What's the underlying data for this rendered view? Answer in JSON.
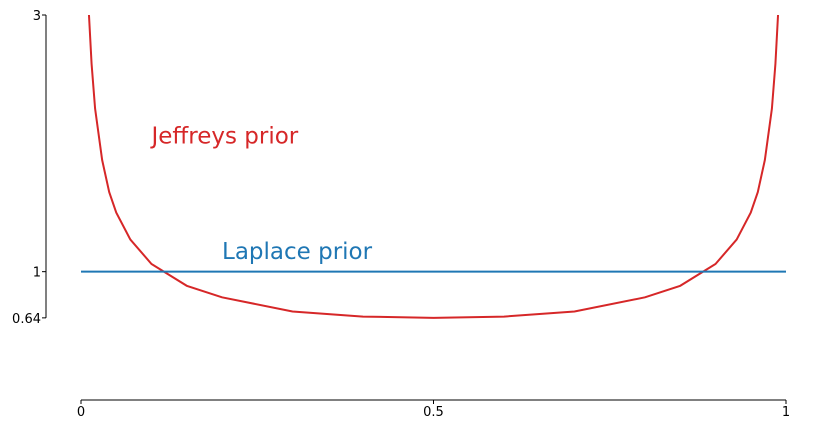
{
  "chart_data": {
    "type": "line",
    "xlim": [
      0,
      1
    ],
    "xticks": [
      0,
      0.5,
      1
    ],
    "ylim": [
      0,
      3
    ],
    "yticks": [
      0.64,
      1,
      3
    ],
    "series": [
      {
        "name": "Jeffreys prior",
        "color": "#d62728",
        "x": [
          0.0113,
          0.015,
          0.02,
          0.03,
          0.04,
          0.05,
          0.07,
          0.1,
          0.15,
          0.2,
          0.3,
          0.4,
          0.5,
          0.6,
          0.7,
          0.8,
          0.85,
          0.9,
          0.93,
          0.95,
          0.96,
          0.97,
          0.98,
          0.985,
          0.9887
        ],
        "values": [
          3,
          2.62,
          2.27,
          1.87,
          1.62,
          1.46,
          1.25,
          1.06,
          0.89,
          0.8,
          0.69,
          0.65,
          0.64,
          0.65,
          0.69,
          0.8,
          0.89,
          1.06,
          1.25,
          1.46,
          1.62,
          1.87,
          2.27,
          2.62,
          3
        ]
      },
      {
        "name": "Laplace prior",
        "color": "#1f77b4",
        "x": [
          0,
          1
        ],
        "values": [
          1,
          1
        ]
      }
    ]
  }
}
